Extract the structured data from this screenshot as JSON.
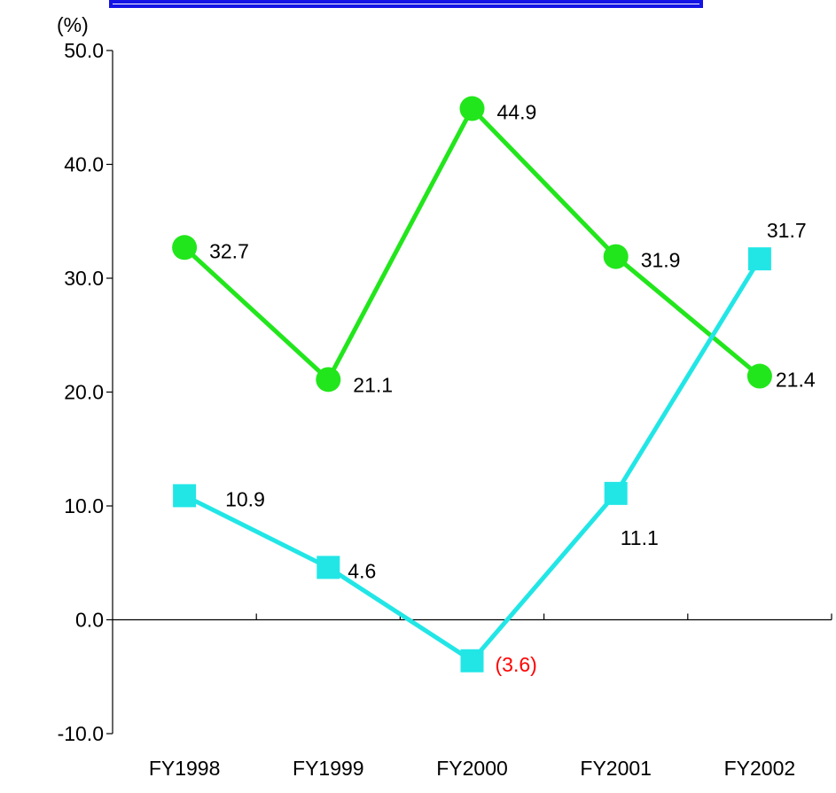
{
  "chart_data": {
    "type": "line",
    "title": "",
    "ylabel": "(%)",
    "xlabel": "",
    "categories": [
      "FY1998",
      "FY1999",
      "FY2000",
      "FY2001",
      "FY2002"
    ],
    "ylim": [
      -10,
      50
    ],
    "yticks": [
      "50.0",
      "40.0",
      "30.0",
      "20.0",
      "10.0",
      "0.0",
      "-10.0"
    ],
    "grid": false,
    "legend": "none",
    "series": [
      {
        "color": "#22e61c",
        "marker": "circle",
        "values": [
          32.7,
          21.1,
          44.9,
          31.9,
          21.4
        ],
        "labels": [
          "32.7",
          "21.1",
          "44.9",
          "31.9",
          "21.4"
        ]
      },
      {
        "color": "#22e6e6",
        "marker": "square",
        "values": [
          10.9,
          4.6,
          -3.6,
          11.1,
          31.7
        ],
        "labels": [
          "10.9",
          "4.6",
          "(3.6)",
          "11.1",
          "31.7"
        ]
      }
    ],
    "negative_label_color": "#ff0000",
    "header_bar_color": "#1414e6"
  }
}
